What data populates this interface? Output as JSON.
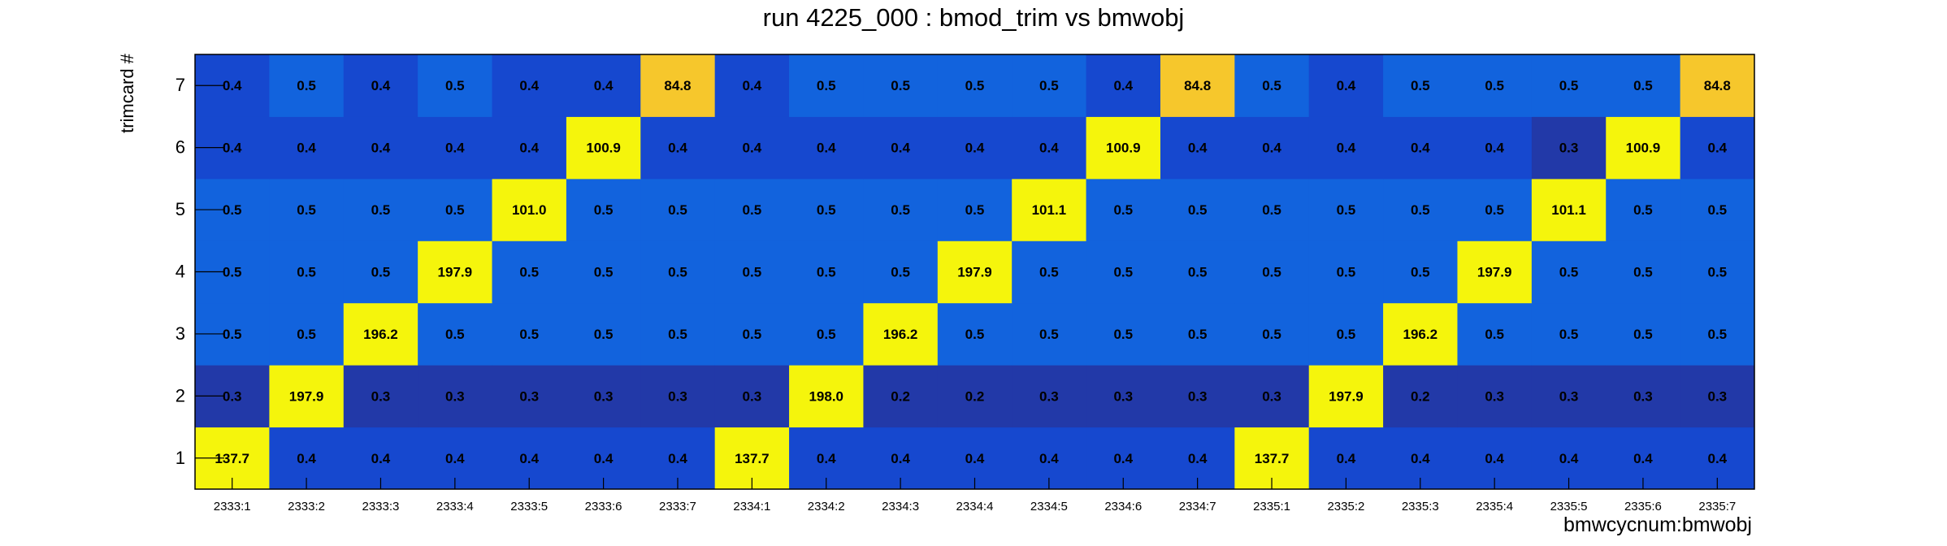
{
  "chart_data": {
    "type": "heatmap",
    "title": "run 4225_000 : bmod_trim vs bmwobj",
    "xlabel": "bmwcycnum:bmwobj",
    "ylabel": "trimcard #",
    "x_categories": [
      "2333:1",
      "2333:2",
      "2333:3",
      "2333:4",
      "2333:5",
      "2333:6",
      "2333:7",
      "2334:1",
      "2334:2",
      "2334:3",
      "2334:4",
      "2334:5",
      "2334:6",
      "2334:7",
      "2335:1",
      "2335:2",
      "2335:3",
      "2335:4",
      "2335:5",
      "2335:6",
      "2335:7"
    ],
    "y_categories": [
      "1",
      "2",
      "3",
      "4",
      "5",
      "6",
      "7"
    ],
    "values": [
      [
        137.7,
        0.4,
        0.4,
        0.4,
        0.4,
        0.4,
        0.4,
        137.7,
        0.4,
        0.4,
        0.4,
        0.4,
        0.4,
        0.4,
        137.7,
        0.4,
        0.4,
        0.4,
        0.4,
        0.4,
        0.4
      ],
      [
        0.3,
        197.9,
        0.3,
        0.3,
        0.3,
        0.3,
        0.3,
        0.3,
        198.0,
        0.2,
        0.2,
        0.3,
        0.3,
        0.3,
        0.3,
        197.9,
        0.2,
        0.3,
        0.3,
        0.3,
        0.3
      ],
      [
        0.5,
        0.5,
        196.2,
        0.5,
        0.5,
        0.5,
        0.5,
        0.5,
        0.5,
        196.2,
        0.5,
        0.5,
        0.5,
        0.5,
        0.5,
        0.5,
        196.2,
        0.5,
        0.5,
        0.5,
        0.5
      ],
      [
        0.5,
        0.5,
        0.5,
        197.9,
        0.5,
        0.5,
        0.5,
        0.5,
        0.5,
        0.5,
        197.9,
        0.5,
        0.5,
        0.5,
        0.5,
        0.5,
        0.5,
        197.9,
        0.5,
        0.5,
        0.5
      ],
      [
        0.5,
        0.5,
        0.5,
        0.5,
        101.0,
        0.5,
        0.5,
        0.5,
        0.5,
        0.5,
        0.5,
        101.1,
        0.5,
        0.5,
        0.5,
        0.5,
        0.5,
        0.5,
        101.1,
        0.5,
        0.5
      ],
      [
        0.4,
        0.4,
        0.4,
        0.4,
        0.4,
        100.9,
        0.4,
        0.4,
        0.4,
        0.4,
        0.4,
        0.4,
        100.9,
        0.4,
        0.4,
        0.4,
        0.4,
        0.4,
        0.3,
        100.9,
        0.4
      ],
      [
        0.4,
        0.5,
        0.4,
        0.5,
        0.4,
        0.4,
        84.8,
        0.4,
        0.5,
        0.5,
        0.5,
        0.5,
        0.4,
        84.8,
        0.5,
        0.4,
        0.5,
        0.5,
        0.5,
        0.5,
        84.8
      ]
    ],
    "value_format": "one decimal place",
    "colors": {
      "low_dark": "#2239a8",
      "low_mid": "#1648cf",
      "low": "#1263dd",
      "mid_high": "#f6c72c",
      "high": "#f5f50c"
    },
    "grid": false,
    "legend": "none"
  }
}
